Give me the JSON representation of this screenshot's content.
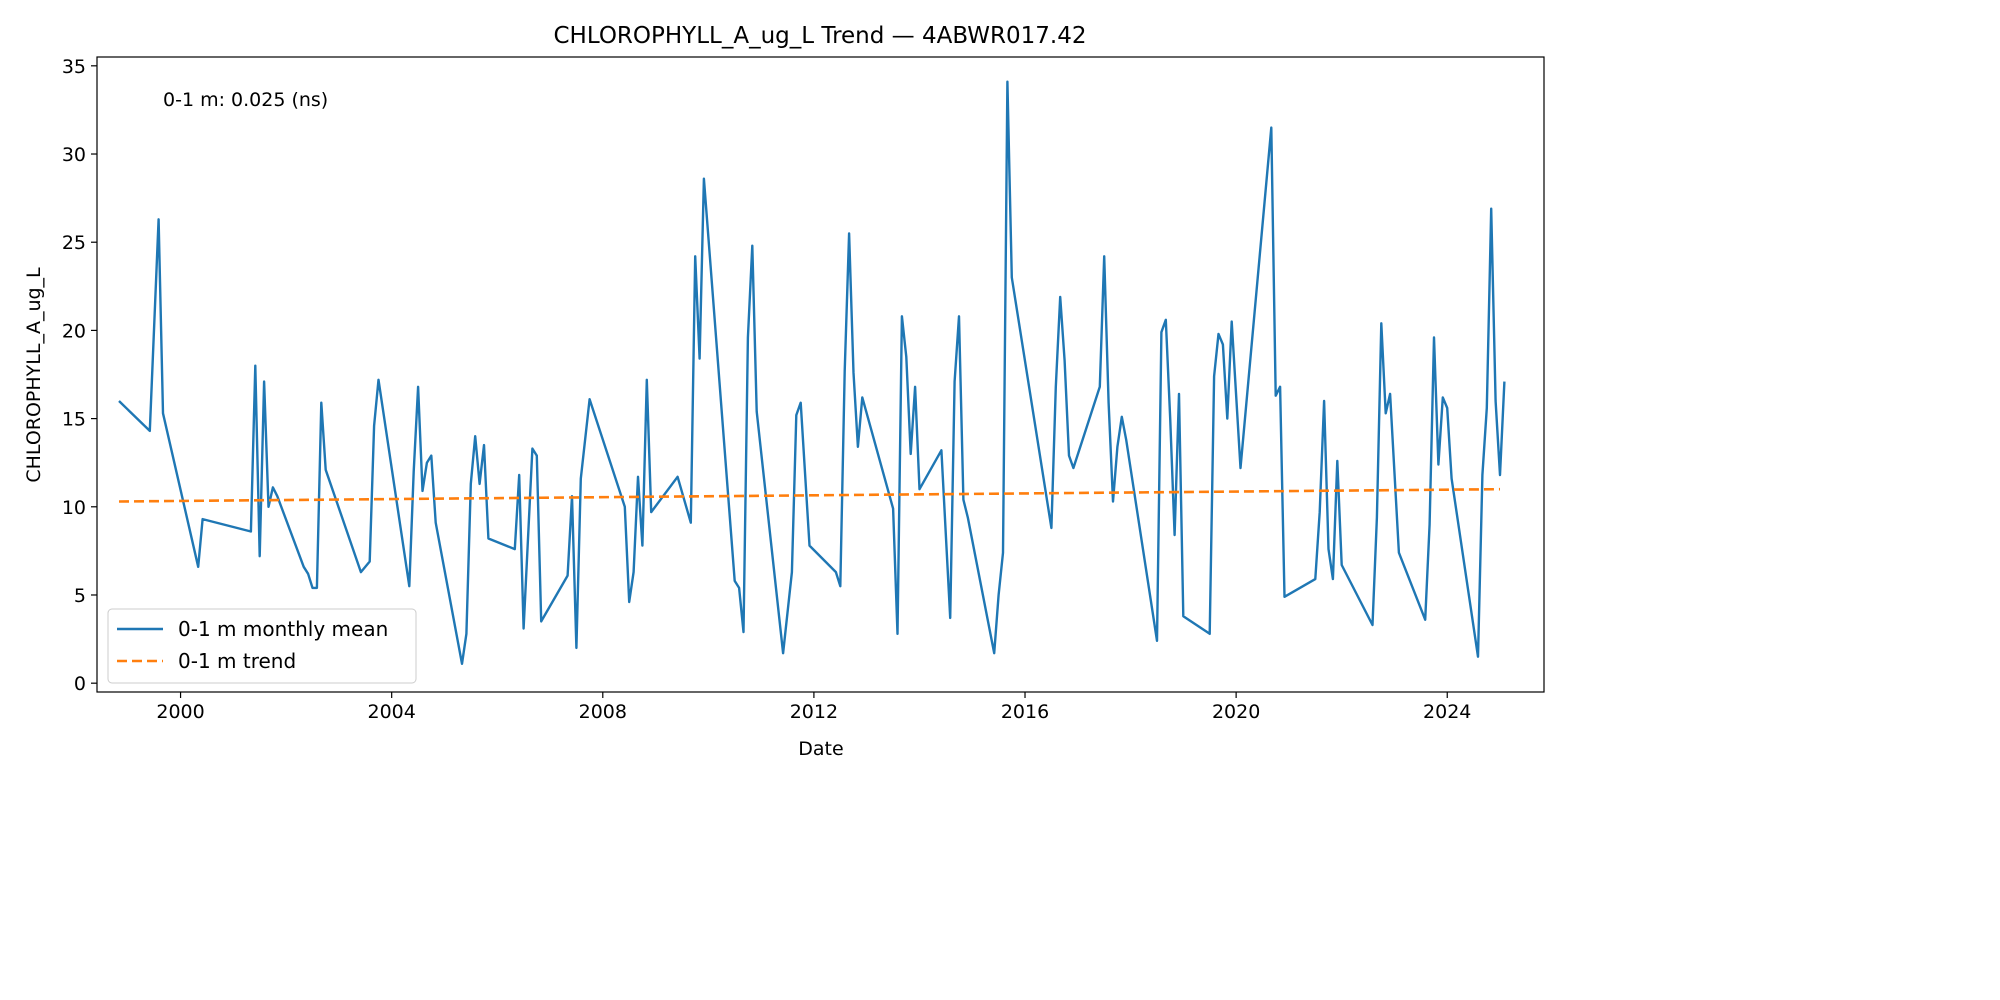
{
  "chart_data": {
    "type": "line",
    "title": "CHLOROPHYLL_A_ug_L Trend — 4ABWR017.42",
    "xlabel": "Date",
    "ylabel": "CHLOROPHYLL_A_ug_L",
    "x_ticks": [
      "2000",
      "2004",
      "2008",
      "2012",
      "2016",
      "2020",
      "2024"
    ],
    "y_ticks": [
      "0",
      "5",
      "10",
      "15",
      "20",
      "25",
      "30",
      "35"
    ],
    "xlim": [
      "1998-06",
      "2025-11"
    ],
    "ylim": [
      -0.5,
      35.5
    ],
    "grid": false,
    "legend_position": "lower-left",
    "annotation": "0-1 m: 0.025 (ns)",
    "series": [
      {
        "name": "0-1 m monthly mean",
        "color": "#1f77b4",
        "style": "solid",
        "points": [
          [
            "1998-11",
            16.0
          ],
          [
            "1999-06",
            14.3
          ],
          [
            "1999-08",
            26.3
          ],
          [
            "1999-09",
            15.3
          ],
          [
            "2000-05",
            6.6
          ],
          [
            "2000-06",
            9.3
          ],
          [
            "2001-05",
            8.6
          ],
          [
            "2001-06",
            18.0
          ],
          [
            "2001-07",
            7.2
          ],
          [
            "2001-08",
            17.1
          ],
          [
            "2001-09",
            10.0
          ],
          [
            "2001-10",
            11.1
          ],
          [
            "2001-11",
            10.6
          ],
          [
            "2002-05",
            6.6
          ],
          [
            "2002-06",
            6.2
          ],
          [
            "2002-07",
            5.4
          ],
          [
            "2002-08",
            5.4
          ],
          [
            "2002-09",
            15.9
          ],
          [
            "2002-10",
            12.1
          ],
          [
            "2003-06",
            6.3
          ],
          [
            "2003-08",
            6.9
          ],
          [
            "2003-09",
            14.6
          ],
          [
            "2003-10",
            17.2
          ],
          [
            "2004-05",
            5.5
          ],
          [
            "2004-06",
            12.0
          ],
          [
            "2004-07",
            16.8
          ],
          [
            "2004-08",
            10.9
          ],
          [
            "2004-09",
            12.5
          ],
          [
            "2004-10",
            12.9
          ],
          [
            "2004-11",
            9.1
          ],
          [
            "2005-05",
            1.1
          ],
          [
            "2005-06",
            2.8
          ],
          [
            "2005-07",
            11.3
          ],
          [
            "2005-08",
            14.0
          ],
          [
            "2005-09",
            11.3
          ],
          [
            "2005-10",
            13.5
          ],
          [
            "2005-11",
            8.2
          ],
          [
            "2006-05",
            7.6
          ],
          [
            "2006-06",
            11.8
          ],
          [
            "2006-07",
            3.1
          ],
          [
            "2006-09",
            13.3
          ],
          [
            "2006-10",
            12.9
          ],
          [
            "2006-11",
            3.5
          ],
          [
            "2007-05",
            6.1
          ],
          [
            "2007-06",
            10.6
          ],
          [
            "2007-07",
            2.0
          ],
          [
            "2007-08",
            11.6
          ],
          [
            "2007-10",
            16.1
          ],
          [
            "2008-06",
            10.0
          ],
          [
            "2008-07",
            4.6
          ],
          [
            "2008-08",
            6.3
          ],
          [
            "2008-09",
            11.7
          ],
          [
            "2008-10",
            7.8
          ],
          [
            "2008-11",
            17.2
          ],
          [
            "2008-12",
            9.7
          ],
          [
            "2009-06",
            11.7
          ],
          [
            "2009-09",
            9.1
          ],
          [
            "2009-10",
            24.2
          ],
          [
            "2009-11",
            18.4
          ],
          [
            "2009-12",
            28.6
          ],
          [
            "2010-07",
            5.8
          ],
          [
            "2010-08",
            5.4
          ],
          [
            "2010-09",
            2.9
          ],
          [
            "2010-10",
            19.6
          ],
          [
            "2010-11",
            24.8
          ],
          [
            "2010-12",
            15.4
          ],
          [
            "2011-06",
            1.7
          ],
          [
            "2011-08",
            6.3
          ],
          [
            "2011-09",
            15.2
          ],
          [
            "2011-10",
            15.9
          ],
          [
            "2011-12",
            7.8
          ],
          [
            "2012-06",
            6.3
          ],
          [
            "2012-07",
            5.5
          ],
          [
            "2012-08",
            17.7
          ],
          [
            "2012-09",
            25.5
          ],
          [
            "2012-10",
            17.6
          ],
          [
            "2012-11",
            13.4
          ],
          [
            "2012-12",
            16.2
          ],
          [
            "2013-07",
            9.9
          ],
          [
            "2013-08",
            2.8
          ],
          [
            "2013-09",
            20.8
          ],
          [
            "2013-10",
            18.5
          ],
          [
            "2013-11",
            13.0
          ],
          [
            "2013-12",
            16.8
          ],
          [
            "2014-01",
            11.0
          ],
          [
            "2014-06",
            13.2
          ],
          [
            "2014-08",
            3.7
          ],
          [
            "2014-09",
            17.1
          ],
          [
            "2014-10",
            20.8
          ],
          [
            "2014-11",
            10.4
          ],
          [
            "2014-12",
            9.4
          ],
          [
            "2015-06",
            1.7
          ],
          [
            "2015-07",
            5.0
          ],
          [
            "2015-08",
            7.4
          ],
          [
            "2015-09",
            34.1
          ],
          [
            "2015-10",
            23.0
          ],
          [
            "2016-07",
            8.8
          ],
          [
            "2016-08",
            16.8
          ],
          [
            "2016-09",
            21.9
          ],
          [
            "2016-10",
            18.3
          ],
          [
            "2016-11",
            12.9
          ],
          [
            "2016-12",
            12.2
          ],
          [
            "2017-06",
            16.8
          ],
          [
            "2017-07",
            24.2
          ],
          [
            "2017-08",
            15.9
          ],
          [
            "2017-09",
            10.3
          ],
          [
            "2017-10",
            13.4
          ],
          [
            "2017-11",
            15.1
          ],
          [
            "2017-12",
            13.8
          ],
          [
            "2018-07",
            2.4
          ],
          [
            "2018-08",
            19.9
          ],
          [
            "2018-09",
            20.6
          ],
          [
            "2018-10",
            15.0
          ],
          [
            "2018-11",
            8.4
          ],
          [
            "2018-12",
            16.4
          ],
          [
            "2019-01",
            3.8
          ],
          [
            "2019-07",
            2.8
          ],
          [
            "2019-08",
            17.4
          ],
          [
            "2019-09",
            19.8
          ],
          [
            "2019-10",
            19.2
          ],
          [
            "2019-11",
            15.0
          ],
          [
            "2019-12",
            20.5
          ],
          [
            "2020-02",
            12.2
          ],
          [
            "2020-09",
            31.5
          ],
          [
            "2020-10",
            16.3
          ],
          [
            "2020-11",
            16.8
          ],
          [
            "2020-12",
            4.9
          ],
          [
            "2021-07",
            5.9
          ],
          [
            "2021-08",
            9.7
          ],
          [
            "2021-09",
            16.0
          ],
          [
            "2021-10",
            7.6
          ],
          [
            "2021-11",
            5.9
          ],
          [
            "2021-12",
            12.6
          ],
          [
            "2022-01",
            6.7
          ],
          [
            "2022-08",
            3.3
          ],
          [
            "2022-09",
            9.4
          ],
          [
            "2022-10",
            20.4
          ],
          [
            "2022-11",
            15.3
          ],
          [
            "2022-12",
            16.4
          ],
          [
            "2023-02",
            7.4
          ],
          [
            "2023-08",
            3.6
          ],
          [
            "2023-09",
            9.0
          ],
          [
            "2023-10",
            19.6
          ],
          [
            "2023-11",
            12.4
          ],
          [
            "2023-12",
            16.2
          ],
          [
            "2024-01",
            15.6
          ],
          [
            "2024-02",
            11.6
          ],
          [
            "2024-08",
            1.5
          ],
          [
            "2024-09",
            11.8
          ],
          [
            "2024-10",
            15.6
          ],
          [
            "2024-11",
            26.9
          ],
          [
            "2024-12",
            16.0
          ],
          [
            "2025-01",
            11.8
          ],
          [
            "2025-02",
            17.1
          ]
        ]
      },
      {
        "name": "0-1 m trend",
        "color": "#ff7f0e",
        "style": "dashed",
        "points": [
          [
            "1998-11",
            10.3
          ],
          [
            "2025-01",
            11.0
          ]
        ]
      }
    ]
  }
}
